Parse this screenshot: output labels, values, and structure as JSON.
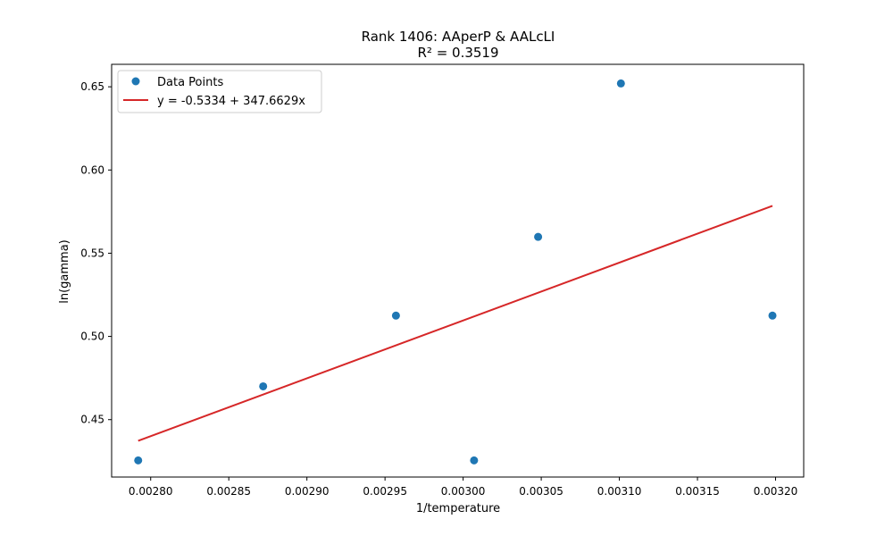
{
  "chart_data": {
    "type": "scatter",
    "title": "Rank 1406: AAperP & AALcLI",
    "subtitle": "R² = 0.3519",
    "xlabel": "1/temperature",
    "ylabel": "ln(gamma)",
    "xlim": [
      0.002775,
      0.003218
    ],
    "ylim": [
      0.4155,
      0.6635
    ],
    "xticks": [
      0.0028,
      0.00285,
      0.0029,
      0.00295,
      0.003,
      0.00305,
      0.0031,
      0.00315,
      0.0032
    ],
    "xtick_labels": [
      "0.00280",
      "0.00285",
      "0.00290",
      "0.00295",
      "0.00300",
      "0.00305",
      "0.00310",
      "0.00315",
      "0.00320"
    ],
    "yticks": [
      0.45,
      0.5,
      0.55,
      0.6,
      0.65
    ],
    "ytick_labels": [
      "0.45",
      "0.50",
      "0.55",
      "0.60",
      "0.65"
    ],
    "legend_position": "top-left",
    "series": [
      {
        "name": "Data Points",
        "kind": "scatter",
        "color": "#1f77b4",
        "x": [
          0.002792,
          0.002872,
          0.002957,
          0.003007,
          0.003048,
          0.003101,
          0.003198
        ],
        "y": [
          0.4255,
          0.47,
          0.5125,
          0.4255,
          0.5598,
          0.652,
          0.5125
        ]
      },
      {
        "name": "y = -0.5334 + 347.6629x",
        "kind": "line",
        "color": "#d62728",
        "intercept": -0.5334,
        "slope": 347.6629,
        "x": [
          0.002792,
          0.003198
        ]
      }
    ]
  }
}
